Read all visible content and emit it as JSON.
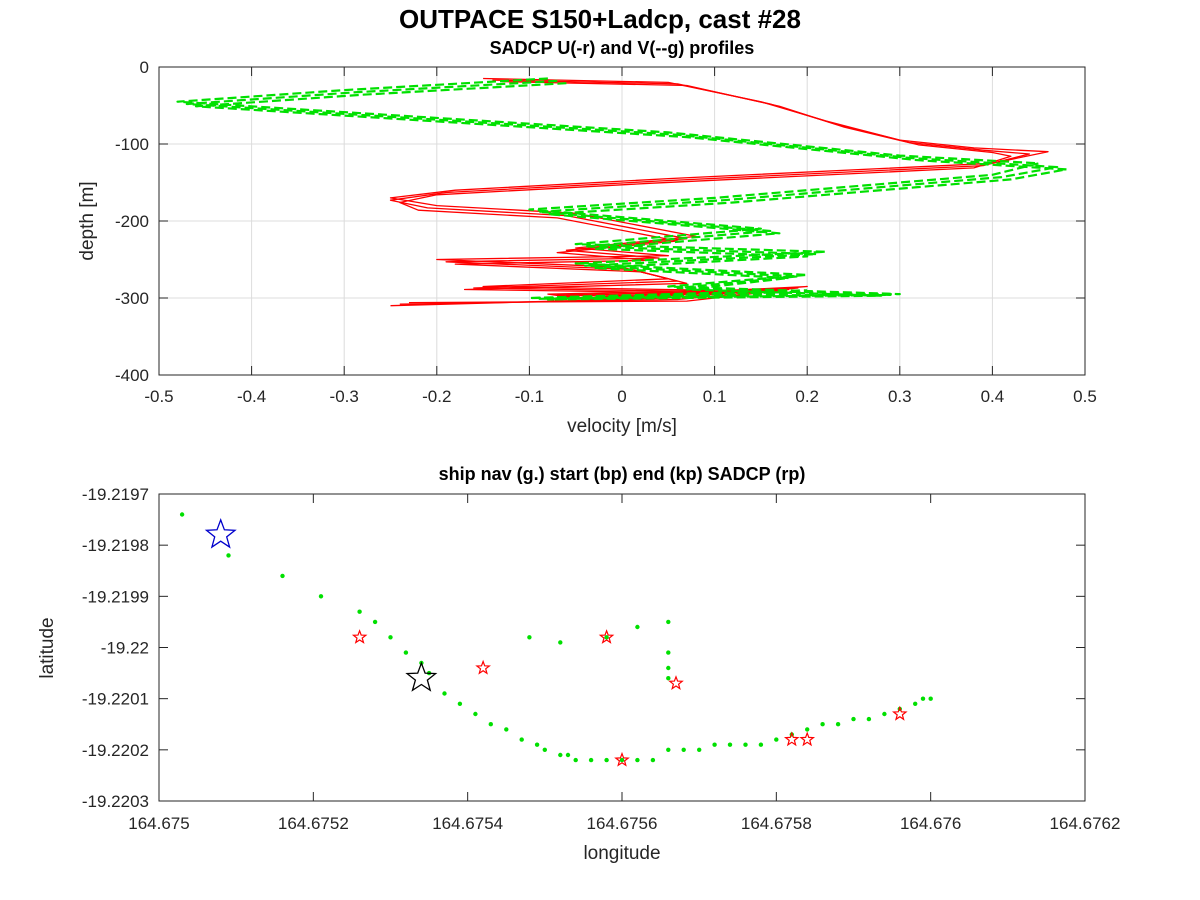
{
  "figure": {
    "suptitle": "OUTPACE S150+Ladcp, cast #28"
  },
  "chart_data": [
    {
      "type": "line",
      "title": "SADCP U(-r) and V(--g) profiles",
      "xlabel": "velocity [m/s]",
      "ylabel": "depth [m]",
      "xlim": [
        -0.5,
        0.5
      ],
      "ylim": [
        -400,
        0
      ],
      "xticks": [
        "-0.5",
        "-0.4",
        "-0.3",
        "-0.2",
        "-0.1",
        "0",
        "0.1",
        "0.2",
        "0.3",
        "0.4",
        "0.5"
      ],
      "yticks": [
        "0",
        "-100",
        "-200",
        "-300",
        "-400"
      ],
      "grid": true,
      "series": [
        {
          "style": "solid",
          "color": "#ff0000",
          "x": [
            -0.15,
            0.05,
            0.15,
            0.22,
            0.3,
            0.38,
            0.46,
            0.4,
            0.05,
            -0.18,
            -0.25,
            -0.2,
            -0.05,
            0.08,
            -0.05,
            0.05,
            -0.2,
            0.0,
            0.05,
            -0.15,
            0.1,
            -0.08,
            -0.05,
            0.2,
            0.05,
            -0.25
          ],
          "y": [
            -15,
            -20,
            -45,
            -70,
            -95,
            -105,
            -110,
            -125,
            -145,
            -160,
            -170,
            -180,
            -190,
            -220,
            -235,
            -245,
            -250,
            -260,
            -275,
            -285,
            -290,
            -295,
            -300,
            -285,
            -300,
            -310
          ]
        },
        {
          "style": "solid",
          "color": "#ff0000",
          "x": [
            -0.14,
            0.06,
            0.16,
            0.23,
            0.31,
            0.39,
            0.44,
            0.39,
            0.04,
            -0.19,
            -0.25,
            -0.21,
            -0.06,
            0.07,
            -0.06,
            0.04,
            -0.19,
            0.01,
            0.06,
            -0.16,
            0.11,
            -0.07,
            -0.04,
            0.19,
            0.06,
            -0.24
          ],
          "y": [
            -17,
            -22,
            -48,
            -74,
            -98,
            -108,
            -113,
            -128,
            -148,
            -163,
            -173,
            -183,
            -193,
            -223,
            -238,
            -248,
            -253,
            -263,
            -278,
            -287,
            -292,
            -296,
            -301,
            -287,
            -302,
            -308
          ]
        },
        {
          "style": "solid",
          "color": "#ff0000",
          "x": [
            -0.13,
            0.07,
            0.17,
            0.24,
            0.32,
            0.4,
            0.42,
            0.38,
            0.03,
            -0.2,
            -0.24,
            -0.22,
            -0.07,
            0.06,
            -0.07,
            0.03,
            -0.18,
            0.02,
            0.07,
            -0.17,
            0.12,
            -0.06,
            -0.03,
            0.18,
            0.07,
            -0.23
          ],
          "y": [
            -19,
            -24,
            -51,
            -78,
            -101,
            -111,
            -116,
            -131,
            -151,
            -166,
            -176,
            -186,
            -196,
            -226,
            -241,
            -251,
            -256,
            -266,
            -281,
            -289,
            -294,
            -297,
            -302,
            -289,
            -304,
            -306
          ]
        },
        {
          "style": "dashed",
          "color": "#00e000",
          "x": [
            -0.08,
            -0.3,
            -0.48,
            0.05,
            0.3,
            0.45,
            0.4,
            0.1,
            -0.1,
            0.15,
            -0.05,
            0.22,
            -0.05,
            0.2,
            0.05,
            0.3,
            -0.1,
            0.2
          ],
          "y": [
            -15,
            -30,
            -45,
            -85,
            -115,
            -125,
            -140,
            -170,
            -185,
            -210,
            -230,
            -240,
            -255,
            -270,
            -285,
            -295,
            -300,
            -290
          ]
        },
        {
          "style": "dashed",
          "color": "#00e000",
          "x": [
            -0.07,
            -0.29,
            -0.47,
            0.06,
            0.31,
            0.47,
            0.41,
            0.11,
            -0.09,
            0.16,
            -0.04,
            0.21,
            -0.04,
            0.19,
            0.06,
            0.29,
            -0.09,
            0.19
          ],
          "y": [
            -18,
            -33,
            -48,
            -88,
            -118,
            -130,
            -143,
            -173,
            -188,
            -213,
            -233,
            -243,
            -258,
            -272,
            -287,
            -296,
            -301,
            -292
          ]
        },
        {
          "style": "dashed",
          "color": "#00e000",
          "x": [
            -0.06,
            -0.28,
            -0.46,
            0.07,
            0.32,
            0.48,
            0.42,
            0.12,
            -0.08,
            0.17,
            -0.03,
            0.2,
            -0.03,
            0.18,
            0.07,
            0.28,
            -0.08,
            0.18
          ],
          "y": [
            -21,
            -36,
            -51,
            -91,
            -121,
            -133,
            -146,
            -176,
            -191,
            -216,
            -236,
            -246,
            -261,
            -274,
            -289,
            -297,
            -302,
            -294
          ]
        }
      ]
    },
    {
      "type": "scatter",
      "title": "ship nav (g.) start (bp) end (kp) SADCP (rp)",
      "xlabel": "longitude",
      "ylabel": "latitude",
      "xlim": [
        164.675,
        164.6762
      ],
      "ylim": [
        -19.2203,
        -19.2197
      ],
      "xticks": [
        "164.675",
        "164.6752",
        "164.6754",
        "164.6756",
        "164.6758",
        "164.676",
        "164.6762"
      ],
      "yticks": [
        "-19.2197",
        "-19.2198",
        "-19.2199",
        "-19.22",
        "-19.2201",
        "-19.2202",
        "-19.2203"
      ],
      "grid": false,
      "nav": {
        "marker": "dot",
        "color": "#00e000",
        "x": [
          164.67503,
          164.67509,
          164.67516,
          164.67521,
          164.67526,
          164.67528,
          164.6753,
          164.67532,
          164.67534,
          164.67535,
          164.67537,
          164.67539,
          164.67541,
          164.67543,
          164.67545,
          164.67547,
          164.67549,
          164.6755,
          164.67552,
          164.67553,
          164.67554,
          164.67556,
          164.67558,
          164.6756,
          164.67562,
          164.67564,
          164.67566,
          164.67568,
          164.6757,
          164.67572,
          164.67574,
          164.67576,
          164.67578,
          164.6758,
          164.67582,
          164.67584,
          164.67586,
          164.67588,
          164.6759,
          164.67592,
          164.67594,
          164.67596,
          164.67598,
          164.67599,
          164.676,
          164.67548,
          164.67552,
          164.67558,
          164.67562,
          164.67566,
          164.67566,
          164.67566,
          164.67566
        ],
        "y": [
          -19.21974,
          -19.21982,
          -19.21986,
          -19.2199,
          -19.21993,
          -19.21995,
          -19.21998,
          -19.22001,
          -19.22003,
          -19.22005,
          -19.22009,
          -19.22011,
          -19.22013,
          -19.22015,
          -19.22016,
          -19.22018,
          -19.22019,
          -19.2202,
          -19.22021,
          -19.22021,
          -19.22022,
          -19.22022,
          -19.22022,
          -19.22022,
          -19.22022,
          -19.22022,
          -19.2202,
          -19.2202,
          -19.2202,
          -19.22019,
          -19.22019,
          -19.22019,
          -19.22019,
          -19.22018,
          -19.22017,
          -19.22016,
          -19.22015,
          -19.22015,
          -19.22014,
          -19.22014,
          -19.22013,
          -19.22012,
          -19.22011,
          -19.2201,
          -19.2201,
          -19.21998,
          -19.21999,
          -19.21998,
          -19.21996,
          -19.21995,
          -19.22001,
          -19.22004,
          -19.22006
        ]
      },
      "start": {
        "marker": "star",
        "color": "#0000cc",
        "x": 164.67508,
        "y": -19.21978
      },
      "end": {
        "marker": "star",
        "color": "#000000",
        "x": 164.67534,
        "y": -19.22006
      },
      "sadcp": {
        "marker": "star",
        "color": "#ff0000",
        "x": [
          164.67526,
          164.67542,
          164.67558,
          164.67567,
          164.6756,
          164.67582,
          164.67584,
          164.67596
        ],
        "y": [
          -19.21998,
          -19.22004,
          -19.21998,
          -19.22007,
          -19.22022,
          -19.22018,
          -19.22018,
          -19.22013
        ]
      }
    }
  ]
}
